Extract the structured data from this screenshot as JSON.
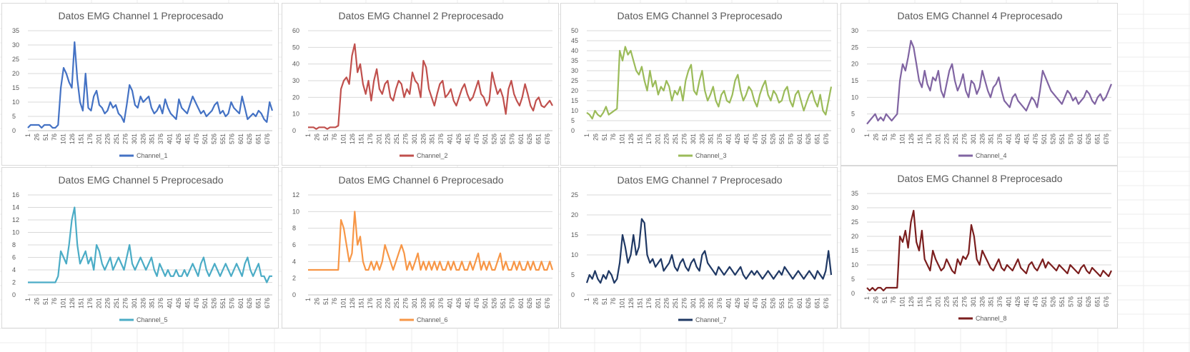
{
  "chart_data": [
    {
      "type": "line",
      "title": "Datos EMG Channel 1 Preprocesado",
      "ylim": [
        0,
        35
      ],
      "yticks": [
        0,
        5,
        10,
        15,
        20,
        25,
        30,
        35
      ],
      "color": "#4472c4",
      "series": [
        {
          "name": "Channel_1",
          "values": [
            1,
            2,
            2,
            2,
            2,
            1,
            2,
            2,
            2,
            1,
            1,
            2,
            15,
            22,
            20,
            17,
            15,
            31,
            18,
            10,
            7,
            20,
            8,
            7,
            12,
            14,
            9,
            8,
            6,
            7,
            10,
            8,
            9,
            6,
            5,
            3,
            9,
            16,
            14,
            9,
            8,
            12,
            10,
            11,
            12,
            8,
            6,
            7,
            9,
            6,
            11,
            8,
            6,
            5,
            4,
            11,
            8,
            7,
            6,
            9,
            12,
            10,
            8,
            6,
            7,
            5,
            6,
            7,
            9,
            10,
            6,
            7,
            5,
            6,
            10,
            8,
            7,
            6,
            12,
            8,
            4,
            5,
            6,
            5,
            7,
            6,
            4,
            3,
            10,
            7
          ]
        }
      ]
    },
    {
      "type": "line",
      "title": "Datos EMG Channel 2 Preprocesado",
      "ylim": [
        0,
        60
      ],
      "yticks": [
        0,
        10,
        20,
        30,
        40,
        50,
        60
      ],
      "color": "#c0504d",
      "series": [
        {
          "name": "Channel_2",
          "values": [
            2,
            2,
            2,
            1,
            2,
            2,
            2,
            1,
            2,
            2,
            2,
            3,
            25,
            30,
            32,
            28,
            45,
            52,
            35,
            40,
            28,
            22,
            30,
            18,
            30,
            37,
            25,
            22,
            28,
            30,
            20,
            18,
            25,
            30,
            28,
            20,
            25,
            22,
            35,
            30,
            28,
            20,
            42,
            38,
            25,
            20,
            15,
            22,
            28,
            30,
            20,
            22,
            25,
            18,
            15,
            20,
            25,
            28,
            22,
            18,
            20,
            25,
            30,
            22,
            20,
            15,
            18,
            35,
            28,
            22,
            25,
            20,
            10,
            25,
            30,
            22,
            18,
            15,
            20,
            28,
            22,
            15,
            12,
            18,
            20,
            15,
            14,
            16,
            18,
            15
          ]
        }
      ]
    },
    {
      "type": "line",
      "title": "Datos EMG Channel 3 Preprocesado",
      "ylim": [
        0,
        50
      ],
      "yticks": [
        0,
        5,
        10,
        15,
        20,
        25,
        30,
        35,
        40,
        45,
        50
      ],
      "color": "#9bbb59",
      "series": [
        {
          "name": "Channel_3",
          "values": [
            9,
            8,
            6,
            10,
            8,
            7,
            9,
            12,
            8,
            9,
            10,
            11,
            40,
            35,
            42,
            38,
            40,
            35,
            30,
            28,
            32,
            25,
            20,
            30,
            22,
            25,
            18,
            22,
            20,
            25,
            22,
            15,
            20,
            18,
            22,
            15,
            25,
            30,
            33,
            20,
            18,
            25,
            30,
            20,
            15,
            18,
            22,
            15,
            12,
            18,
            20,
            15,
            14,
            18,
            25,
            28,
            20,
            15,
            18,
            22,
            20,
            15,
            12,
            18,
            22,
            25,
            18,
            15,
            20,
            18,
            14,
            15,
            20,
            22,
            15,
            12,
            18,
            20,
            15,
            10,
            14,
            18,
            20,
            15,
            12,
            18,
            10,
            8,
            15,
            22
          ]
        }
      ]
    },
    {
      "type": "line",
      "title": "Datos EMG Channel 4 Preprocesado",
      "ylim": [
        0,
        30
      ],
      "yticks": [
        0,
        5,
        10,
        15,
        20,
        25,
        30
      ],
      "color": "#8064a2",
      "series": [
        {
          "name": "Channel_4",
          "values": [
            2,
            3,
            4,
            5,
            3,
            4,
            3,
            5,
            4,
            3,
            4,
            5,
            15,
            20,
            18,
            22,
            27,
            25,
            20,
            15,
            13,
            18,
            14,
            12,
            16,
            15,
            18,
            12,
            10,
            14,
            18,
            20,
            15,
            12,
            14,
            17,
            12,
            10,
            15,
            14,
            11,
            13,
            18,
            15,
            12,
            10,
            13,
            14,
            16,
            12,
            9,
            8,
            7,
            10,
            11,
            9,
            8,
            7,
            6,
            8,
            10,
            9,
            7,
            12,
            18,
            16,
            14,
            12,
            11,
            10,
            9,
            8,
            10,
            12,
            11,
            9,
            10,
            8,
            9,
            10,
            12,
            11,
            9,
            8,
            10,
            11,
            9,
            10,
            12,
            14
          ]
        }
      ]
    },
    {
      "type": "line",
      "title": "Datos EMG Channel 5 Preprocesado",
      "ylim": [
        0,
        16
      ],
      "yticks": [
        0,
        2,
        4,
        6,
        8,
        10,
        12,
        14,
        16
      ],
      "color": "#4bacc6",
      "series": [
        {
          "name": "Channel_5",
          "values": [
            2,
            2,
            2,
            2,
            2,
            2,
            2,
            2,
            2,
            2,
            2,
            3,
            7,
            6,
            5,
            8,
            12,
            14,
            8,
            5,
            6,
            7,
            5,
            6,
            4,
            8,
            7,
            5,
            4,
            5,
            6,
            4,
            5,
            6,
            5,
            4,
            6,
            8,
            5,
            4,
            5,
            6,
            5,
            4,
            5,
            6,
            4,
            3,
            5,
            4,
            3,
            4,
            3,
            3,
            4,
            3,
            3,
            4,
            3,
            4,
            5,
            4,
            3,
            5,
            6,
            4,
            3,
            4,
            5,
            4,
            3,
            4,
            5,
            4,
            3,
            4,
            5,
            4,
            3,
            5,
            6,
            4,
            3,
            4,
            5,
            3,
            3,
            2,
            3,
            3
          ]
        }
      ]
    },
    {
      "type": "line",
      "title": "Datos EMG Channel 6 Preprocesado",
      "ylim": [
        0,
        12
      ],
      "yticks": [
        0,
        2,
        4,
        6,
        8,
        10,
        12
      ],
      "color": "#f79646",
      "series": [
        {
          "name": "Channel_6",
          "values": [
            3,
            3,
            3,
            3,
            3,
            3,
            3,
            3,
            3,
            3,
            3,
            3,
            9,
            8,
            6,
            4,
            5,
            10,
            6,
            7,
            4,
            3,
            3,
            4,
            3,
            4,
            3,
            4,
            6,
            5,
            4,
            3,
            4,
            5,
            6,
            5,
            3,
            4,
            3,
            4,
            5,
            3,
            4,
            3,
            4,
            3,
            4,
            3,
            4,
            3,
            3,
            4,
            3,
            4,
            3,
            3,
            4,
            3,
            3,
            4,
            3,
            4,
            5,
            3,
            4,
            3,
            4,
            3,
            3,
            4,
            5,
            3,
            4,
            3,
            3,
            4,
            3,
            4,
            3,
            3,
            4,
            3,
            4,
            3,
            3,
            4,
            3,
            3,
            4,
            3
          ]
        }
      ]
    },
    {
      "type": "line",
      "title": "Datos EMG Channel 7 Preprocesado",
      "ylim": [
        0,
        25
      ],
      "yticks": [
        0,
        5,
        10,
        15,
        20,
        25
      ],
      "color": "#1f3864",
      "series": [
        {
          "name": "Channel_7",
          "values": [
            3,
            5,
            4,
            6,
            4,
            3,
            5,
            4,
            6,
            5,
            3,
            4,
            8,
            15,
            12,
            8,
            10,
            15,
            10,
            12,
            19,
            18,
            10,
            8,
            9,
            7,
            8,
            9,
            6,
            7,
            8,
            10,
            7,
            6,
            8,
            9,
            7,
            6,
            8,
            9,
            7,
            6,
            10,
            11,
            8,
            7,
            6,
            5,
            7,
            6,
            5,
            6,
            7,
            6,
            5,
            6,
            7,
            5,
            4,
            5,
            6,
            5,
            6,
            5,
            4,
            5,
            6,
            5,
            4,
            5,
            6,
            5,
            7,
            6,
            5,
            4,
            5,
            6,
            5,
            4,
            5,
            6,
            5,
            4,
            6,
            5,
            4,
            6,
            11,
            5
          ]
        }
      ]
    },
    {
      "type": "line",
      "title": "Datos EMG Channel 8 Preprocesado",
      "ylim": [
        0,
        35
      ],
      "yticks": [
        0,
        5,
        10,
        15,
        20,
        25,
        30,
        35
      ],
      "color": "#7b1e1e",
      "series": [
        {
          "name": "Channel_8",
          "values": [
            2,
            1,
            2,
            1,
            2,
            2,
            1,
            2,
            2,
            2,
            2,
            2,
            20,
            18,
            22,
            16,
            25,
            29,
            18,
            15,
            22,
            12,
            10,
            8,
            15,
            12,
            10,
            8,
            9,
            12,
            10,
            8,
            7,
            12,
            10,
            13,
            12,
            14,
            24,
            20,
            12,
            10,
            15,
            13,
            11,
            9,
            8,
            10,
            12,
            9,
            8,
            10,
            9,
            8,
            10,
            12,
            9,
            8,
            7,
            10,
            11,
            9,
            8,
            10,
            12,
            9,
            11,
            10,
            9,
            8,
            10,
            9,
            8,
            7,
            10,
            9,
            8,
            7,
            9,
            10,
            8,
            7,
            9,
            8,
            7,
            6,
            8,
            7,
            6,
            8
          ]
        }
      ]
    }
  ],
  "x_tick_labels": [
    "1",
    "26",
    "51",
    "76",
    "101",
    "126",
    "151",
    "176",
    "201",
    "226",
    "251",
    "276",
    "301",
    "326",
    "351",
    "376",
    "401",
    "426",
    "451",
    "476",
    "501",
    "526",
    "551",
    "576",
    "601",
    "626",
    "651",
    "676"
  ],
  "x_last": 690
}
